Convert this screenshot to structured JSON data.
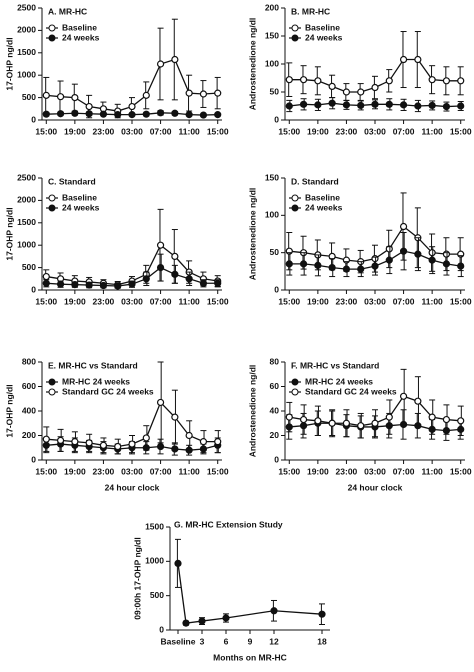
{
  "chart_data": [
    {
      "type": "line",
      "title": "A. MR-HC",
      "ylabel": "17-OHP ng/dl",
      "x": [
        0,
        2,
        4,
        6,
        8,
        10,
        12,
        14,
        16,
        18,
        20,
        22,
        24
      ],
      "xlim": [
        -0.6,
        24.6
      ],
      "xticks": [
        {
          "value": 0,
          "label": "15:00"
        },
        {
          "value": 4,
          "label": "19:00"
        },
        {
          "value": 8,
          "label": "23:00"
        },
        {
          "value": 12,
          "label": "03:00"
        },
        {
          "value": 16,
          "label": "07:00"
        },
        {
          "value": 20,
          "label": "11:00"
        },
        {
          "value": 24,
          "label": "15:00"
        }
      ],
      "ylim": [
        0,
        2500
      ],
      "yticks": [
        0,
        500,
        1000,
        1500,
        2000,
        2500
      ],
      "legend": "top-left",
      "series": [
        {
          "name": "Baseline",
          "color": "#111111",
          "marker": "open",
          "values": [
            550,
            520,
            500,
            300,
            250,
            200,
            300,
            550,
            1250,
            1350,
            600,
            580,
            600
          ],
          "errors": [
            400,
            350,
            300,
            250,
            150,
            150,
            200,
            300,
            800,
            900,
            400,
            300,
            350
          ]
        },
        {
          "name": "24 weeks",
          "color": "#111111",
          "marker": "filled",
          "values": [
            130,
            140,
            150,
            140,
            130,
            120,
            120,
            130,
            160,
            150,
            120,
            110,
            120
          ],
          "errors": [
            40,
            40,
            40,
            40,
            30,
            30,
            30,
            40,
            50,
            40,
            30,
            30,
            30
          ]
        }
      ]
    },
    {
      "type": "line",
      "title": "B. MR-HC",
      "ylabel": "Androstenedione ng/dl",
      "x": [
        0,
        2,
        4,
        6,
        8,
        10,
        12,
        14,
        16,
        18,
        20,
        22,
        24
      ],
      "xlim": [
        -0.6,
        24.6
      ],
      "xticks": [
        {
          "value": 0,
          "label": "15:00"
        },
        {
          "value": 4,
          "label": "19:00"
        },
        {
          "value": 8,
          "label": "23:00"
        },
        {
          "value": 12,
          "label": "03:00"
        },
        {
          "value": 16,
          "label": "07:00"
        },
        {
          "value": 20,
          "label": "11:00"
        },
        {
          "value": 24,
          "label": "15:00"
        }
      ],
      "ylim": [
        0,
        200
      ],
      "yticks": [
        0,
        50,
        100,
        150,
        200
      ],
      "legend": "top-left",
      "series": [
        {
          "name": "Baseline",
          "color": "#111111",
          "marker": "open",
          "values": [
            72,
            72,
            70,
            60,
            50,
            50,
            58,
            70,
            108,
            108,
            72,
            70,
            70
          ],
          "errors": [
            30,
            25,
            25,
            20,
            15,
            15,
            20,
            20,
            50,
            50,
            25,
            25,
            25
          ]
        },
        {
          "name": "24 weeks",
          "color": "#111111",
          "marker": "filled",
          "values": [
            25,
            28,
            27,
            30,
            27,
            26,
            28,
            28,
            27,
            25,
            26,
            24,
            25
          ],
          "errors": [
            10,
            10,
            10,
            10,
            8,
            8,
            8,
            10,
            10,
            10,
            8,
            8,
            8
          ]
        }
      ]
    },
    {
      "type": "line",
      "title": "C. Standard",
      "ylabel": "17-OHP ng/dl",
      "x": [
        0,
        2,
        4,
        6,
        8,
        10,
        12,
        14,
        16,
        18,
        20,
        22,
        24
      ],
      "xlim": [
        -0.6,
        24.6
      ],
      "xticks": [
        {
          "value": 0,
          "label": "15:00"
        },
        {
          "value": 4,
          "label": "19:00"
        },
        {
          "value": 8,
          "label": "23:00"
        },
        {
          "value": 12,
          "label": "03:00"
        },
        {
          "value": 16,
          "label": "07:00"
        },
        {
          "value": 20,
          "label": "11:00"
        },
        {
          "value": 24,
          "label": "15:00"
        }
      ],
      "ylim": [
        0,
        2500
      ],
      "yticks": [
        0,
        500,
        1000,
        1500,
        2000,
        2500
      ],
      "legend": "top-left",
      "series": [
        {
          "name": "Baseline",
          "color": "#111111",
          "marker": "open",
          "values": [
            300,
            250,
            200,
            180,
            150,
            120,
            200,
            350,
            1000,
            750,
            400,
            250,
            200
          ],
          "errors": [
            150,
            130,
            120,
            100,
            80,
            70,
            100,
            200,
            800,
            600,
            250,
            150,
            120
          ]
        },
        {
          "name": "24 weeks",
          "color": "#111111",
          "marker": "filled",
          "values": [
            150,
            130,
            120,
            110,
            100,
            90,
            130,
            250,
            500,
            350,
            250,
            150,
            150
          ],
          "errors": [
            80,
            70,
            60,
            60,
            50,
            50,
            70,
            150,
            300,
            200,
            150,
            80,
            80
          ]
        }
      ]
    },
    {
      "type": "line",
      "title": "D. Standard",
      "ylabel": "Androstenedione ng/dl",
      "x": [
        0,
        2,
        4,
        6,
        8,
        10,
        12,
        14,
        16,
        18,
        20,
        22,
        24
      ],
      "xlim": [
        -0.6,
        24.6
      ],
      "xticks": [
        {
          "value": 0,
          "label": "15:00"
        },
        {
          "value": 4,
          "label": "19:00"
        },
        {
          "value": 8,
          "label": "23:00"
        },
        {
          "value": 12,
          "label": "03:00"
        },
        {
          "value": 16,
          "label": "07:00"
        },
        {
          "value": 20,
          "label": "11:00"
        },
        {
          "value": 24,
          "label": "15:00"
        }
      ],
      "ylim": [
        0,
        150
      ],
      "yticks": [
        0,
        50,
        100,
        150
      ],
      "legend": "top-left",
      "series": [
        {
          "name": "Baseline",
          "color": "#111111",
          "marker": "open",
          "values": [
            52,
            50,
            47,
            45,
            40,
            38,
            42,
            55,
            85,
            70,
            50,
            48,
            48
          ],
          "errors": [
            25,
            22,
            20,
            18,
            15,
            15,
            18,
            25,
            45,
            40,
            25,
            22,
            22
          ]
        },
        {
          "name": "24 weeks",
          "color": "#111111",
          "marker": "filled",
          "values": [
            35,
            35,
            33,
            30,
            28,
            28,
            32,
            40,
            52,
            48,
            40,
            35,
            32
          ],
          "errors": [
            15,
            15,
            14,
            12,
            10,
            10,
            12,
            18,
            25,
            22,
            18,
            15,
            14
          ]
        }
      ]
    },
    {
      "type": "line",
      "title": "E. MR-HC vs Standard",
      "ylabel": "17-OHP ng/dl",
      "xlabel": "24 hour clock",
      "x": [
        0,
        2,
        4,
        6,
        8,
        10,
        12,
        14,
        16,
        18,
        20,
        22,
        24
      ],
      "xlim": [
        -0.6,
        24.6
      ],
      "xticks": [
        {
          "value": 0,
          "label": "15:00"
        },
        {
          "value": 4,
          "label": "19:00"
        },
        {
          "value": 8,
          "label": "23:00"
        },
        {
          "value": 12,
          "label": "03:00"
        },
        {
          "value": 16,
          "label": "07:00"
        },
        {
          "value": 20,
          "label": "11:00"
        },
        {
          "value": 24,
          "label": "15:00"
        }
      ],
      "ylim": [
        0,
        800
      ],
      "yticks": [
        0,
        200,
        400,
        600,
        800
      ],
      "legend": "top-left",
      "series": [
        {
          "name": "MR-HC 24 weeks",
          "color": "#111111",
          "marker": "filled",
          "values": [
            120,
            130,
            120,
            110,
            100,
            90,
            100,
            100,
            110,
            90,
            80,
            90,
            120
          ],
          "errors": [
            60,
            60,
            60,
            50,
            50,
            40,
            50,
            50,
            60,
            50,
            40,
            40,
            60
          ]
        },
        {
          "name": "Standard GC 24 weeks",
          "color": "#111111",
          "marker": "open",
          "values": [
            170,
            160,
            150,
            140,
            120,
            110,
            130,
            180,
            470,
            350,
            200,
            150,
            150
          ],
          "errors": [
            100,
            90,
            80,
            70,
            60,
            60,
            70,
            100,
            330,
            220,
            120,
            90,
            90
          ]
        }
      ]
    },
    {
      "type": "line",
      "title": "F. MR-HC vs Standard",
      "ylabel": "Androstenedione ng/dl",
      "xlabel": "24 hour clock",
      "x": [
        0,
        2,
        4,
        6,
        8,
        10,
        12,
        14,
        16,
        18,
        20,
        22,
        24
      ],
      "xlim": [
        -0.6,
        24.6
      ],
      "xticks": [
        {
          "value": 0,
          "label": "15:00"
        },
        {
          "value": 4,
          "label": "19:00"
        },
        {
          "value": 8,
          "label": "23:00"
        },
        {
          "value": 12,
          "label": "03:00"
        },
        {
          "value": 16,
          "label": "07:00"
        },
        {
          "value": 20,
          "label": "11:00"
        },
        {
          "value": 24,
          "label": "15:00"
        }
      ],
      "ylim": [
        0,
        80
      ],
      "yticks": [
        0,
        20,
        40,
        60,
        80
      ],
      "legend": "top-left",
      "series": [
        {
          "name": "MR-HC 24 weeks",
          "color": "#111111",
          "marker": "filled",
          "values": [
            27,
            28,
            30,
            30,
            28,
            27,
            27,
            28,
            29,
            28,
            25,
            24,
            25
          ],
          "errors": [
            10,
            10,
            10,
            10,
            9,
            9,
            9,
            10,
            12,
            10,
            8,
            8,
            8
          ]
        },
        {
          "name": "Standard GC 24 weeks",
          "color": "#111111",
          "marker": "open",
          "values": [
            35,
            33,
            32,
            30,
            30,
            28,
            30,
            35,
            52,
            48,
            35,
            33,
            32
          ],
          "errors": [
            12,
            12,
            12,
            11,
            11,
            10,
            11,
            14,
            22,
            20,
            14,
            12,
            12
          ]
        }
      ]
    },
    {
      "type": "line",
      "title": "G. MR-HC Extension Study",
      "ylabel": "09:00h 17-OHP ng/dl",
      "xlabel": "Months on MR-HC",
      "x": [
        0,
        1,
        3,
        6,
        12,
        18
      ],
      "xlim": [
        -1,
        19
      ],
      "xticks": [
        {
          "value": 0,
          "label": "Baseline"
        },
        3,
        6,
        9,
        12,
        18
      ],
      "ylim": [
        0,
        1500
      ],
      "yticks": [
        0,
        500,
        1000,
        1500
      ],
      "series": [
        {
          "color": "#111111",
          "marker": "filled",
          "values": [
            970,
            100,
            130,
            175,
            280,
            230
          ],
          "errors": [
            350,
            30,
            50,
            60,
            150,
            150
          ]
        }
      ]
    }
  ]
}
